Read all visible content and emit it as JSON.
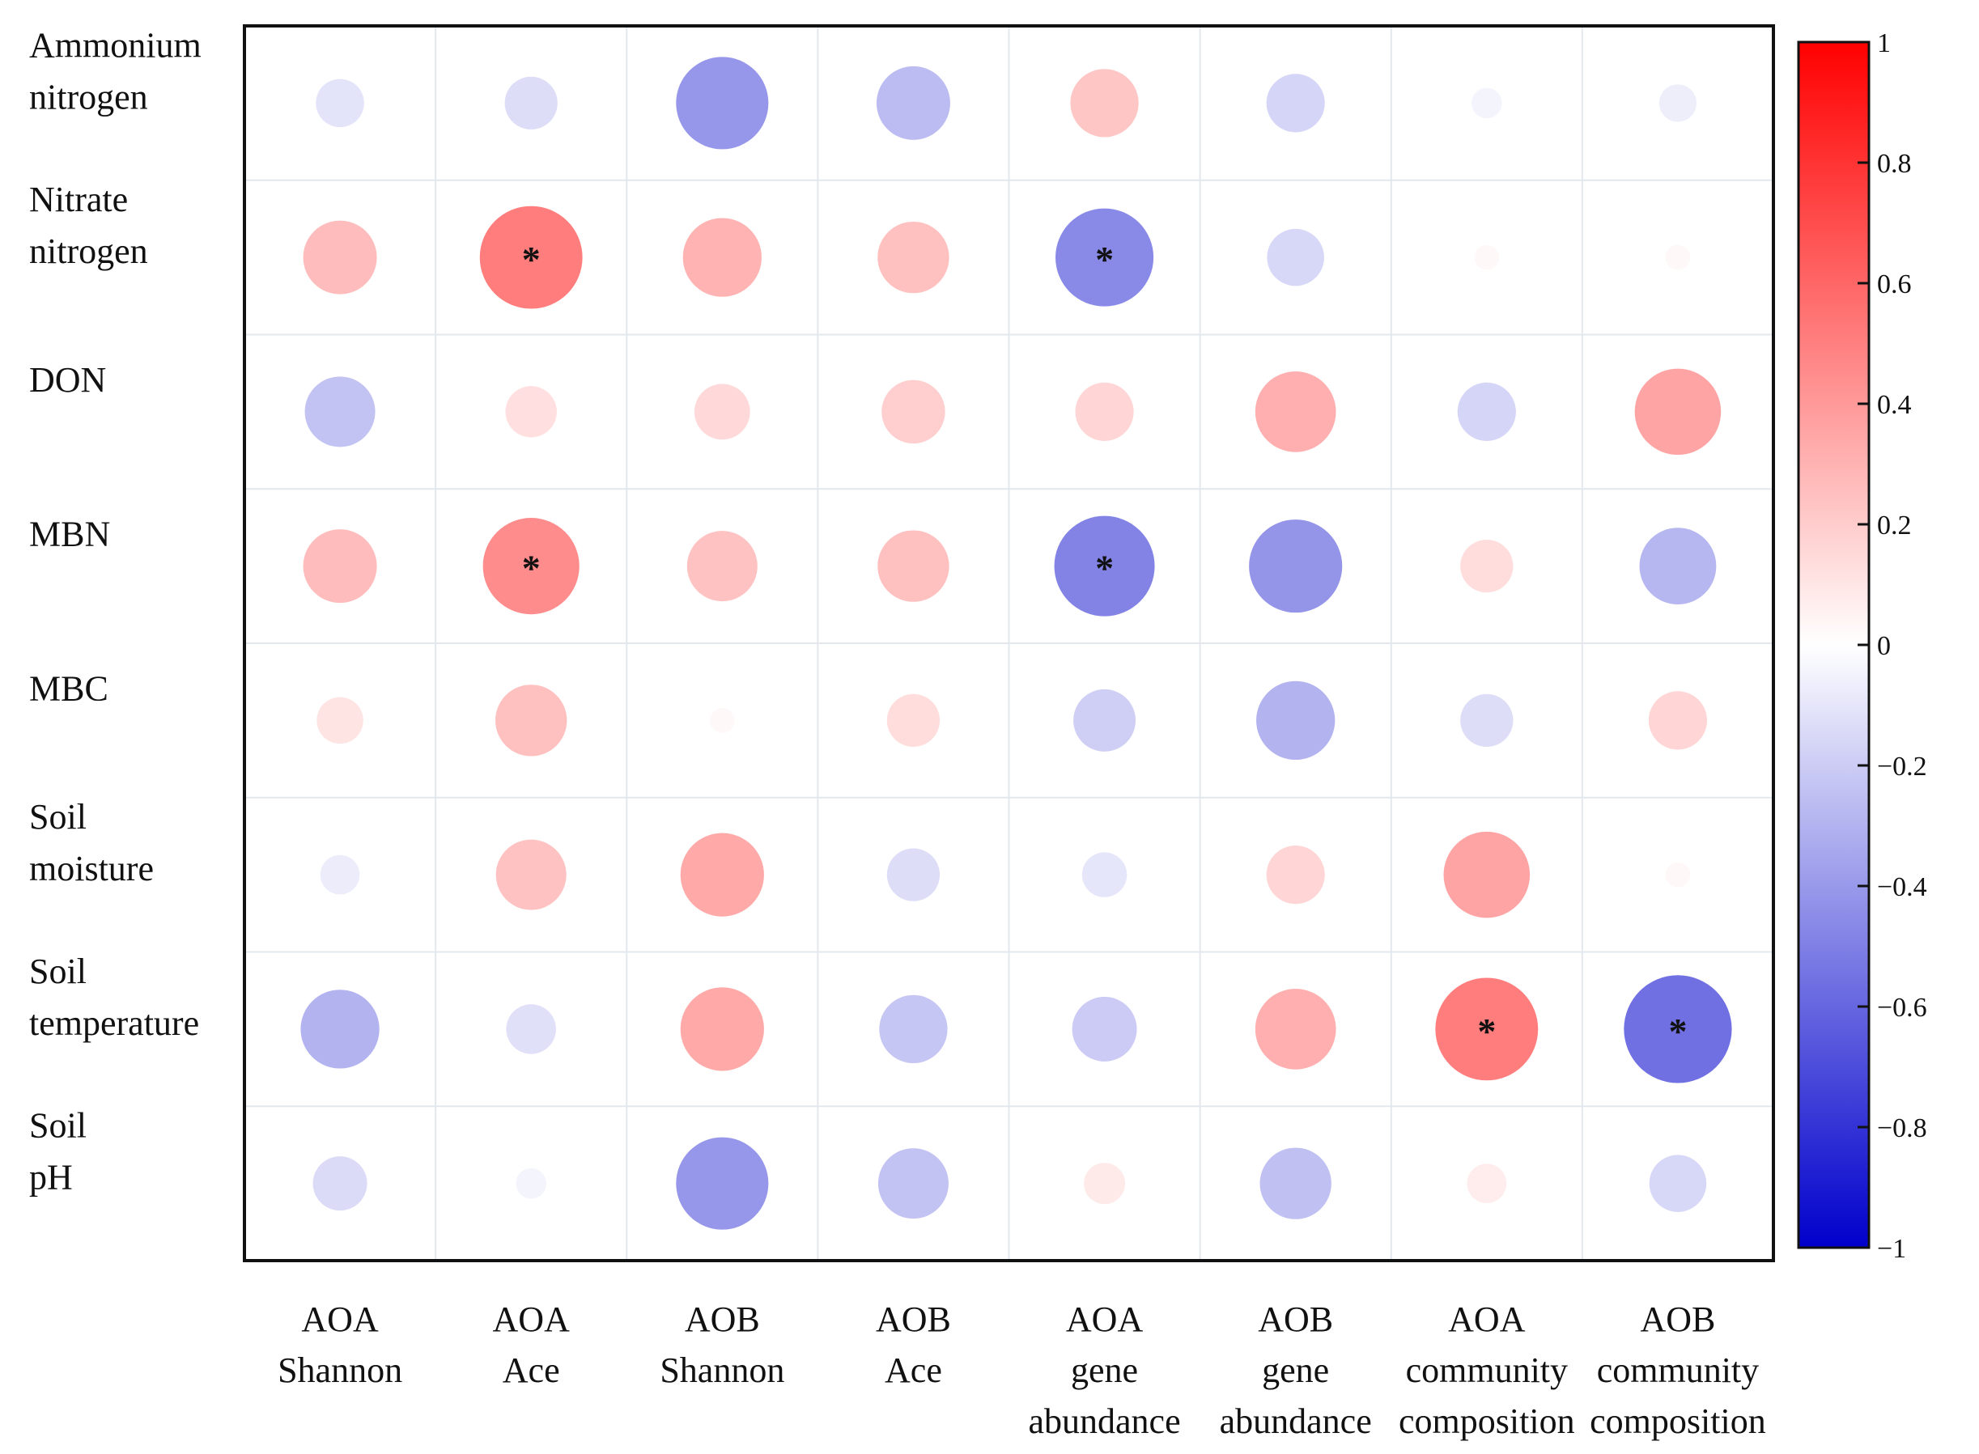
{
  "chart_data": {
    "type": "heatmap",
    "title": "",
    "rows": [
      [
        "Ammonium",
        "nitrogen"
      ],
      [
        "Nitrate",
        "nitrogen"
      ],
      [
        "DON"
      ],
      [
        "MBN"
      ],
      [
        "MBC"
      ],
      [
        "Soil",
        "moisture"
      ],
      [
        "Soil",
        "temperature"
      ],
      [
        "Soil",
        "pH"
      ]
    ],
    "columns": [
      [
        "AOA",
        "Shannon"
      ],
      [
        "AOA",
        "Ace"
      ],
      [
        "AOB",
        "Shannon"
      ],
      [
        "AOB",
        "Ace"
      ],
      [
        "AOA",
        "gene",
        "abundance"
      ],
      [
        "AOB",
        "gene",
        "abundance"
      ],
      [
        "AOA",
        "community",
        "composition"
      ],
      [
        "AOB",
        "community",
        "composition"
      ]
    ],
    "values": [
      [
        -0.15,
        -0.18,
        -0.55,
        -0.35,
        0.3,
        -0.22,
        -0.06,
        -0.09
      ],
      [
        0.35,
        0.68,
        0.4,
        0.33,
        -0.62,
        -0.21,
        0.04,
        0.04
      ],
      [
        -0.32,
        0.17,
        0.2,
        0.26,
        0.22,
        0.42,
        -0.22,
        0.48
      ],
      [
        0.35,
        0.6,
        0.32,
        0.33,
        -0.65,
        -0.56,
        0.18,
        -0.38
      ],
      [
        0.14,
        0.33,
        0.04,
        0.18,
        -0.25,
        -0.4,
        -0.18,
        0.22
      ],
      [
        -0.1,
        0.32,
        0.45,
        -0.18,
        -0.13,
        0.22,
        0.48,
        0.04
      ],
      [
        -0.4,
        -0.16,
        0.45,
        -0.3,
        -0.27,
        0.42,
        0.68,
        -0.75
      ],
      [
        -0.19,
        -0.06,
        -0.55,
        -0.32,
        0.11,
        -0.33,
        0.1,
        -0.21
      ]
    ],
    "significant": [
      [
        1,
        1
      ],
      [
        1,
        4
      ],
      [
        3,
        1
      ],
      [
        3,
        4
      ],
      [
        6,
        6
      ],
      [
        6,
        7
      ]
    ],
    "significance_marker": "*",
    "colorbar": {
      "min": -1,
      "max": 1,
      "ticks": [
        "1",
        "0.8",
        "0.6",
        "0.4",
        "0.2",
        "0",
        "−0.2",
        "−0.4",
        "−0.6",
        "−0.8",
        "−1"
      ],
      "tick_values": [
        1,
        0.8,
        0.6,
        0.4,
        0.2,
        0,
        -0.2,
        -0.4,
        -0.6,
        -0.8,
        -1
      ],
      "colors": {
        "positive_end": "#ff0000",
        "neutral": "#ffffff",
        "negative_end": "#0000cc"
      }
    },
    "grid": true,
    "legend": "right"
  }
}
